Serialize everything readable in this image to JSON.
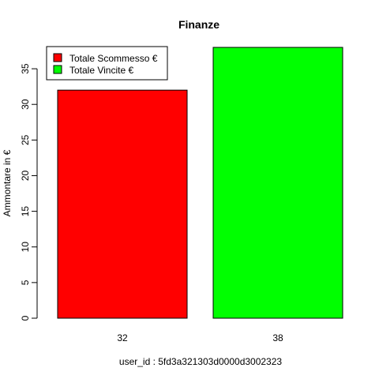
{
  "chart_data": {
    "type": "bar",
    "title": "Finanze",
    "xlabel": "user_id : 5fd3a321303d0000d3002323",
    "ylabel": "Ammontare in €",
    "categories": [
      "32",
      "38"
    ],
    "values": [
      32,
      38
    ],
    "colors": [
      "#ff0000",
      "#00ff00"
    ],
    "ylim": [
      0,
      38
    ],
    "yticks": [
      0,
      5,
      10,
      15,
      20,
      25,
      30,
      35
    ],
    "legend": {
      "placement": "top-left",
      "entries": [
        {
          "label": "Totale Scommesso €",
          "color": "#ff0000"
        },
        {
          "label": "Totale Vincite €",
          "color": "#00ff00"
        }
      ]
    }
  }
}
